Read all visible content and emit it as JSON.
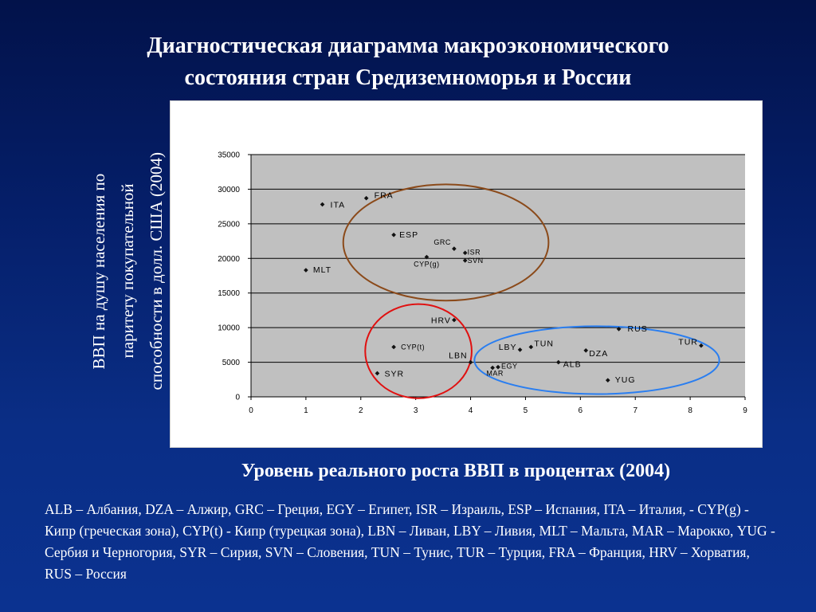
{
  "slide": {
    "title_line1": "Диагностическая диаграмма макроэкономического",
    "title_line2": "состояния стран Средиземноморья и России",
    "y_title_line1": "ВВП на душу населения по",
    "y_title_line2": "паритету покупательной",
    "y_title_line3": "способности в долл. США (2004)",
    "x_title": "Уровень реального роста ВВП в процентах (2004)",
    "legend": "ALB – Албания, DZA – Алжир, GRC – Греция, EGY – Египет, ISR – Израиль, ESP – Испания, ITA – Италия, - CYP(g) - Кипр (греческая зона), CYP(t) - Кипр (турецкая зона), LBN – Ливан, LBY – Ливия, MLT – Мальта, MAR – Марокко, YUG - Сербия и Черногория, SYR – Сирия, SVN – Словения, TUN – Тунис, TUR – Турция, FRA – Франция, HRV – Хорватия, RUS – Россия"
  },
  "chart_data": {
    "type": "scatter",
    "xlim": [
      0,
      9
    ],
    "ylim": [
      0,
      35000
    ],
    "x_ticks": [
      0,
      1,
      2,
      3,
      4,
      5,
      6,
      7,
      8,
      9
    ],
    "y_ticks": [
      0,
      5000,
      10000,
      15000,
      20000,
      25000,
      30000,
      35000
    ],
    "grid": "horizontal",
    "plot_background": "#c0c0c0",
    "points": [
      {
        "label": "ITA",
        "x": 1.3,
        "y": 27800
      },
      {
        "label": "FRA",
        "x": 2.1,
        "y": 28700
      },
      {
        "label": "ESP",
        "x": 2.6,
        "y": 23400
      },
      {
        "label": "GRC",
        "x": 3.7,
        "y": 21400
      },
      {
        "label": "ISR",
        "x": 3.9,
        "y": 20800
      },
      {
        "label": "CYP(g)",
        "x": 3.2,
        "y": 20200
      },
      {
        "label": "SVN",
        "x": 3.9,
        "y": 19700
      },
      {
        "label": "MLT",
        "x": 1.0,
        "y": 18300
      },
      {
        "label": "HRV",
        "x": 3.7,
        "y": 11100
      },
      {
        "label": "CYP(t)",
        "x": 2.6,
        "y": 7200
      },
      {
        "label": "LBN",
        "x": 4.0,
        "y": 5000
      },
      {
        "label": "SYR",
        "x": 2.3,
        "y": 3400
      },
      {
        "label": "MAR",
        "x": 4.4,
        "y": 4200
      },
      {
        "label": "EGY",
        "x": 4.5,
        "y": 4300
      },
      {
        "label": "LBY",
        "x": 4.9,
        "y": 6800
      },
      {
        "label": "TUN",
        "x": 5.1,
        "y": 7200
      },
      {
        "label": "ALB",
        "x": 5.6,
        "y": 5000
      },
      {
        "label": "DZA",
        "x": 6.1,
        "y": 6700
      },
      {
        "label": "RUS",
        "x": 6.7,
        "y": 9800
      },
      {
        "label": "TUR",
        "x": 8.2,
        "y": 7400
      },
      {
        "label": "YUG",
        "x": 6.5,
        "y": 2400
      }
    ],
    "groups": [
      {
        "color": "#8b4a1a",
        "cx": 3.55,
        "cy": 22300,
        "rx": 1.87,
        "ry": 8400
      },
      {
        "color": "#e01010",
        "cx": 3.05,
        "cy": 6600,
        "rx": 0.97,
        "ry": 6800
      },
      {
        "color": "#2a7ef0",
        "cx": 6.3,
        "cy": 5300,
        "rx": 2.23,
        "ry": 4900
      }
    ]
  }
}
